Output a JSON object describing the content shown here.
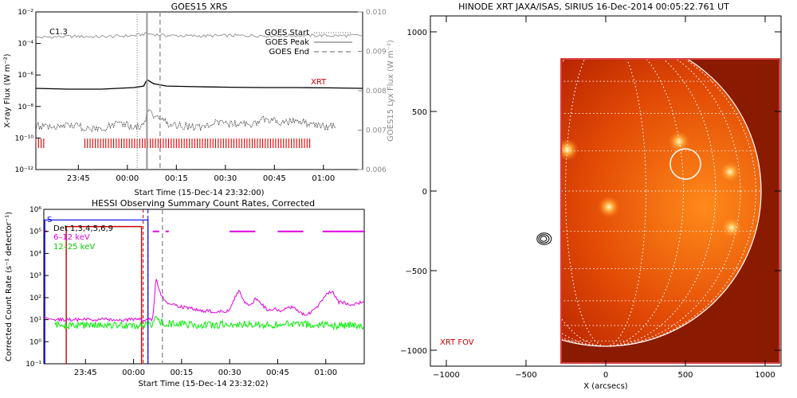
{
  "chart_data": [
    {
      "type": "line",
      "title": "GOES15 XRS",
      "xlabel": "Start Time (15-Dec-14 23:32:00)",
      "ylabel": "X-ray Flux (W m⁻²)",
      "ylabel_right": "GOES15 Lyx Flux (W m⁻²)",
      "x_ticks": [
        "23:45",
        "00:00",
        "00:15",
        "00:30",
        "00:45",
        "01:00"
      ],
      "y_ticks": [
        "10⁻¹²",
        "10⁻¹⁰",
        "10⁻⁸",
        "10⁻⁶",
        "10⁻⁴",
        "10⁻²"
      ],
      "y_ticks_right": [
        "0.006",
        "0.007",
        "0.008",
        "0.009",
        "0.010"
      ],
      "ylim_log10": [
        -12,
        -2
      ],
      "ylim_right": [
        0.006,
        0.01
      ],
      "xlim_minutes": [
        0,
        100
      ],
      "flare_class": "C1.3",
      "legend": [
        "GOES Start",
        "GOES Peak",
        "GOES End"
      ],
      "xrt_label": "XRT",
      "goes_start_min": 31,
      "goes_peak_min": 34,
      "goes_end_min": 38,
      "series": [
        {
          "name": "Lyx",
          "color": "#999999",
          "x": [
            0,
            10,
            20,
            30,
            34,
            40,
            50,
            60,
            70,
            80,
            90,
            100
          ],
          "y": [
            0.00935,
            0.00938,
            0.00937,
            0.0094,
            0.00945,
            0.0094,
            0.00939,
            0.0094,
            0.0094,
            0.0094,
            0.0094,
            0.0094
          ]
        },
        {
          "name": "long",
          "color": "#000000",
          "x": [
            0,
            10,
            20,
            30,
            33,
            34,
            36,
            40,
            50,
            60,
            70,
            80,
            90,
            100
          ],
          "y": [
            -6.85,
            -6.9,
            -6.9,
            -6.8,
            -6.7,
            -6.3,
            -6.55,
            -6.7,
            -6.75,
            -6.78,
            -6.8,
            -6.8,
            -6.82,
            -6.85
          ]
        },
        {
          "name": "short",
          "color": "#000000",
          "x": [
            0,
            5,
            10,
            15,
            20,
            25,
            30,
            33,
            34,
            36,
            38,
            42,
            50,
            55,
            60,
            65,
            70,
            75,
            80,
            85,
            90
          ],
          "y": [
            -9.2,
            -9.3,
            -9.1,
            -9.4,
            -9.5,
            -9.0,
            -9.3,
            -9.3,
            -8.3,
            -8.6,
            -8.9,
            -9.2,
            -9.3,
            -9.0,
            -9.1,
            -9.2,
            -8.8,
            -9.0,
            -8.9,
            -9.2,
            -9.3
          ]
        }
      ],
      "xrt_obs_intervals": [
        [
          0,
          3
        ],
        [
          15,
          84
        ]
      ]
    },
    {
      "type": "line",
      "title": "HESSI Observing Summary Count Rates, Corrected",
      "xlabel": "Start Time (15-Dec-14 23:32:02)",
      "ylabel": "Corrected Count Rate (s⁻¹ detector⁻¹)",
      "x_ticks": [
        "23:45",
        "00:00",
        "00:15",
        "00:30",
        "00:45",
        "01:00"
      ],
      "y_ticks": [
        "10⁻¹",
        "10⁰",
        "10¹",
        "10²",
        "10³",
        "10⁴",
        "10⁵",
        "10⁶"
      ],
      "ylim_log10": [
        -1,
        6
      ],
      "xlim_minutes": [
        0,
        100
      ],
      "legend_det": "Det 1,3,4,5,6,9",
      "s_label": "S",
      "series": [
        {
          "name": "6-12 keV",
          "label": "6–12 keV",
          "color": "#e000e0",
          "x": [
            0,
            3,
            3.5,
            34,
            35,
            36,
            38,
            42,
            50,
            55,
            58,
            60,
            61,
            62,
            64,
            65,
            66,
            70,
            72,
            74,
            78,
            80,
            82,
            85,
            88,
            90,
            92,
            96,
            100
          ],
          "y": [
            1.1,
            1.0,
            1.0,
            1.0,
            2.9,
            2.3,
            1.8,
            1.6,
            1.4,
            1.35,
            1.4,
            2.1,
            2.3,
            1.9,
            1.6,
            1.7,
            2.0,
            1.4,
            1.5,
            1.4,
            1.6,
            1.3,
            1.2,
            1.5,
            2.1,
            2.3,
            1.8,
            1.7,
            1.8
          ]
        },
        {
          "name": "12-25 keV",
          "label": "12–25 keV",
          "color": "#00ee00",
          "x": [
            3.5,
            34,
            35,
            36,
            40,
            50,
            60,
            70,
            80,
            90,
            100
          ],
          "y": [
            0.75,
            0.75,
            1.1,
            0.9,
            0.8,
            0.75,
            0.8,
            0.75,
            0.8,
            0.75,
            0.75
          ]
        }
      ],
      "attenuator_intervals": [
        [
          0,
          1.5
        ],
        [
          2.5,
          3.5
        ]
      ],
      "goes_start_min": 31,
      "goes_peak_min": 33,
      "goes_end_min": 37
    },
    {
      "type": "heatmap",
      "title": "HINODE XRT JAXA/ISAS, SIRIUS 16-Dec-2014 00:05:22.761 UT",
      "xlabel": "X (arcsecs)",
      "ylabel": "",
      "x_ticks": [
        "−1000",
        "−500",
        "0",
        "500",
        "1000"
      ],
      "y_ticks": [
        "−1000",
        "−500",
        "0",
        "500",
        "1000"
      ],
      "xlim": [
        -1100,
        1100
      ],
      "ylim": [
        -1100,
        1100
      ],
      "fov_label": "XRT FOV",
      "fov": {
        "x0": -280,
        "x1": 1090,
        "y0": -1080,
        "y1": 830
      },
      "solar_radius": 975,
      "hessi_region": {
        "x": 500,
        "y": 170,
        "r": 95
      },
      "contour_center": {
        "x": -390,
        "y": -300
      },
      "bright_points": [
        {
          "x": -240,
          "y": 260
        },
        {
          "x": 460,
          "y": 310
        },
        {
          "x": 780,
          "y": 120
        },
        {
          "x": 790,
          "y": -230
        },
        {
          "x": 20,
          "y": -100
        }
      ]
    }
  ]
}
